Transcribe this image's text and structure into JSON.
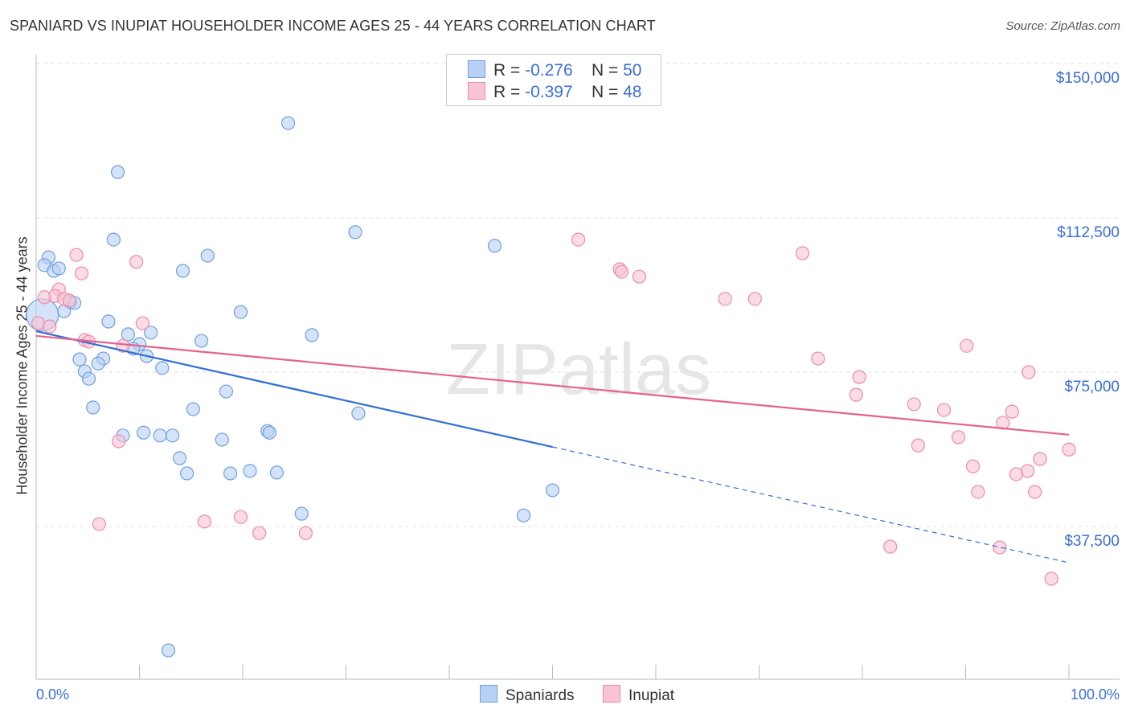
{
  "title": "SPANIARD VS INUPIAT HOUSEHOLDER INCOME AGES 25 - 44 YEARS CORRELATION CHART",
  "source": "Source: ZipAtlas.com",
  "watermark": "ZIPatlas",
  "colors": {
    "blue": "#6f9fe0",
    "blue_fill": "#b7d0f3",
    "blue_line": "#2f6fd6",
    "pink": "#ee8aa8",
    "pink_fill": "#f8c4d4",
    "pink_line": "#e5628c",
    "value_text": "#3a6fd8"
  },
  "legend": {
    "rows": [
      {
        "r_label": "R =",
        "r_value": "-0.276",
        "n_label": "N =",
        "n_value": "50"
      },
      {
        "r_label": "R =",
        "r_value": "-0.397",
        "n_label": "N =",
        "n_value": "48"
      }
    ]
  },
  "chart_data": {
    "type": "scatter",
    "title": "SPANIARD VS INUPIAT HOUSEHOLDER INCOME AGES 25 - 44 YEARS CORRELATION CHART",
    "xlabel": "",
    "ylabel": "Householder Income Ages 25 - 44 years",
    "xlim": [
      0,
      100
    ],
    "ylim": [
      0,
      150000
    ],
    "x_tick_labels": [
      "0.0%",
      "100.0%"
    ],
    "y_ticks": [
      37500,
      75000,
      112500,
      150000
    ],
    "y_tick_labels": [
      "$37,500",
      "$75,000",
      "$112,500",
      "$150,000"
    ],
    "grid": true,
    "legend_placement": "top-center",
    "series": [
      {
        "name": "Spaniards",
        "trend": {
          "x0": 0,
          "y0": 84950,
          "x1": 100,
          "y1": 28700,
          "solid_until_x": 50
        },
        "points": [
          [
            24.4,
            135500
          ],
          [
            7.9,
            123600
          ],
          [
            7.5,
            107200
          ],
          [
            30.9,
            109000
          ],
          [
            44.4,
            105700
          ],
          [
            16.6,
            103300
          ],
          [
            1.2,
            102900
          ],
          [
            0.8,
            101000
          ],
          [
            1.7,
            99600
          ],
          [
            2.2,
            100200
          ],
          [
            14.2,
            99600
          ],
          [
            19.8,
            89600
          ],
          [
            3.3,
            92000
          ],
          [
            3.7,
            91800
          ],
          [
            2.7,
            89800
          ],
          [
            0.6,
            88900
          ],
          [
            7.0,
            87300
          ],
          [
            26.7,
            84000
          ],
          [
            8.9,
            84200
          ],
          [
            11.1,
            84600
          ],
          [
            16.0,
            82600
          ],
          [
            10.0,
            81800
          ],
          [
            9.4,
            80700
          ],
          [
            10.7,
            78900
          ],
          [
            4.2,
            78100
          ],
          [
            6.5,
            78300
          ],
          [
            6.0,
            77100
          ],
          [
            12.2,
            76000
          ],
          [
            4.7,
            75200
          ],
          [
            5.1,
            73400
          ],
          [
            18.4,
            70300
          ],
          [
            5.5,
            66400
          ],
          [
            15.2,
            66000
          ],
          [
            31.2,
            65000
          ],
          [
            8.4,
            59600
          ],
          [
            10.4,
            60300
          ],
          [
            12.0,
            59600
          ],
          [
            13.2,
            59600
          ],
          [
            22.4,
            60700
          ],
          [
            22.6,
            60300
          ],
          [
            18.0,
            58600
          ],
          [
            13.9,
            54100
          ],
          [
            14.6,
            50400
          ],
          [
            18.8,
            50400
          ],
          [
            20.7,
            51000
          ],
          [
            23.3,
            50600
          ],
          [
            50.0,
            46300
          ],
          [
            25.7,
            40600
          ],
          [
            47.2,
            40200
          ],
          [
            12.8,
            7400
          ]
        ]
      },
      {
        "name": "Inupiat",
        "trend": {
          "x0": 0,
          "y0": 83800,
          "x1": 100,
          "y1": 59800,
          "solid_until_x": 100
        },
        "points": [
          [
            0.2,
            86900
          ],
          [
            1.3,
            86100
          ],
          [
            3.9,
            103500
          ],
          [
            4.4,
            99000
          ],
          [
            9.7,
            101800
          ],
          [
            2.2,
            95100
          ],
          [
            1.8,
            93500
          ],
          [
            0.8,
            93200
          ],
          [
            2.7,
            92800
          ],
          [
            3.2,
            92400
          ],
          [
            4.7,
            82800
          ],
          [
            5.1,
            82400
          ],
          [
            8.4,
            81400
          ],
          [
            10.3,
            86900
          ],
          [
            8.0,
            58200
          ],
          [
            6.1,
            38100
          ],
          [
            16.3,
            38700
          ],
          [
            19.8,
            39800
          ],
          [
            21.6,
            35900
          ],
          [
            26.1,
            35900
          ],
          [
            52.5,
            107200
          ],
          [
            56.5,
            100000
          ],
          [
            56.7,
            99400
          ],
          [
            58.4,
            98200
          ],
          [
            66.7,
            92800
          ],
          [
            69.6,
            92800
          ],
          [
            74.2,
            103900
          ],
          [
            75.7,
            78300
          ],
          [
            79.7,
            73800
          ],
          [
            79.4,
            69500
          ],
          [
            85.0,
            67200
          ],
          [
            85.4,
            57200
          ],
          [
            87.9,
            65800
          ],
          [
            89.3,
            59200
          ],
          [
            90.1,
            81400
          ],
          [
            91.2,
            45900
          ],
          [
            90.7,
            52100
          ],
          [
            93.6,
            62700
          ],
          [
            94.5,
            65400
          ],
          [
            96.1,
            75000
          ],
          [
            96.0,
            51000
          ],
          [
            94.9,
            50200
          ],
          [
            96.7,
            45900
          ],
          [
            97.2,
            53900
          ],
          [
            100,
            56200
          ],
          [
            82.7,
            32600
          ],
          [
            93.3,
            32400
          ],
          [
            98.3,
            24800
          ]
        ]
      }
    ]
  }
}
